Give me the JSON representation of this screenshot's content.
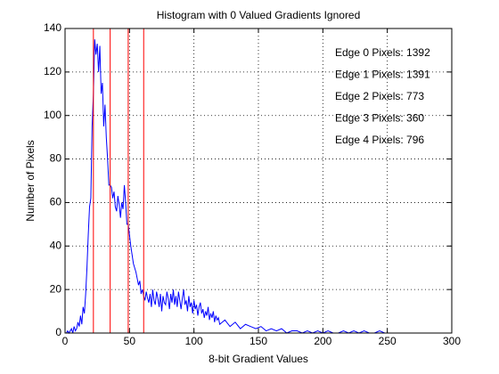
{
  "chart_data": {
    "type": "line",
    "title": "Histogram with 0 Valued Gradients Ignored",
    "xlabel": "8-bit Gradient Values",
    "ylabel": "Number of Pixels",
    "xlim": [
      0,
      300
    ],
    "ylim": [
      0,
      140
    ],
    "xticks": [
      0,
      50,
      100,
      150,
      200,
      250,
      300
    ],
    "yticks": [
      0,
      20,
      40,
      60,
      80,
      100,
      120,
      140
    ],
    "grid": true,
    "x": [
      0,
      1,
      2,
      3,
      4,
      5,
      6,
      7,
      8,
      9,
      10,
      11,
      12,
      13,
      14,
      15,
      16,
      17,
      18,
      19,
      20,
      21,
      22,
      23,
      24,
      25,
      26,
      27,
      28,
      29,
      30,
      31,
      32,
      33,
      34,
      35,
      36,
      37,
      38,
      39,
      40,
      41,
      42,
      43,
      44,
      45,
      46,
      47,
      48,
      49,
      50,
      51,
      52,
      53,
      54,
      55,
      56,
      57,
      58,
      59,
      60,
      61,
      62,
      63,
      64,
      65,
      66,
      67,
      68,
      69,
      70,
      71,
      72,
      73,
      74,
      75,
      76,
      77,
      78,
      79,
      80,
      81,
      82,
      83,
      84,
      85,
      86,
      87,
      88,
      89,
      90,
      91,
      92,
      93,
      94,
      95,
      96,
      97,
      98,
      99,
      100,
      101,
      102,
      103,
      104,
      105,
      106,
      107,
      108,
      109,
      110,
      111,
      112,
      113,
      114,
      115,
      116,
      117,
      118,
      119,
      120,
      124,
      128,
      132,
      136,
      140,
      144,
      148,
      152,
      156,
      160,
      164,
      168,
      172,
      176,
      180,
      184,
      188,
      192,
      196,
      200,
      204,
      208,
      212,
      216,
      220,
      224,
      228,
      232,
      236,
      240,
      244,
      248,
      252,
      256,
      260
    ],
    "series": [
      {
        "name": "Histogram",
        "color": "#0000ff",
        "values": [
          0,
          0,
          1,
          0,
          1,
          2,
          0,
          3,
          1,
          2,
          5,
          3,
          8,
          4,
          12,
          9,
          18,
          30,
          45,
          58,
          62,
          95,
          110,
          135,
          128,
          133,
          120,
          132,
          110,
          115,
          95,
          105,
          90,
          80,
          68,
          68,
          67,
          62,
          65,
          58,
          56,
          63,
          59,
          53,
          60,
          57,
          68,
          60,
          50,
          50,
          45,
          40,
          36,
          32,
          30,
          28,
          25,
          22,
          24,
          18,
          20,
          17,
          15,
          19,
          16,
          14,
          18,
          12,
          20,
          15,
          13,
          19,
          16,
          12,
          18,
          10,
          17,
          14,
          13,
          19,
          16,
          11,
          18,
          14,
          20,
          13,
          17,
          12,
          19,
          15,
          11,
          16,
          20,
          13,
          15,
          10,
          17,
          12,
          14,
          9,
          15,
          11,
          13,
          8,
          12,
          14,
          9,
          11,
          7,
          10,
          8,
          12,
          6,
          9,
          7,
          10,
          5,
          8,
          6,
          7,
          4,
          6,
          3,
          5,
          2,
          4,
          3,
          2,
          3,
          1,
          2,
          1,
          2,
          0,
          1,
          1,
          0,
          1,
          0,
          1,
          0,
          1,
          0,
          0,
          1,
          0,
          1,
          0,
          1,
          0,
          0,
          1,
          0,
          0,
          0,
          0
        ]
      }
    ],
    "vlines": {
      "color": "#ff0000",
      "values": [
        22,
        35,
        49,
        61
      ]
    },
    "annotations": [
      "Edge 0 Pixels: 1392",
      "Edge 1 Pixels: 1391",
      "Edge 2 Pixels: 773",
      "Edge 3 Pixels: 360",
      "Edge 4 Pixels: 796"
    ]
  }
}
